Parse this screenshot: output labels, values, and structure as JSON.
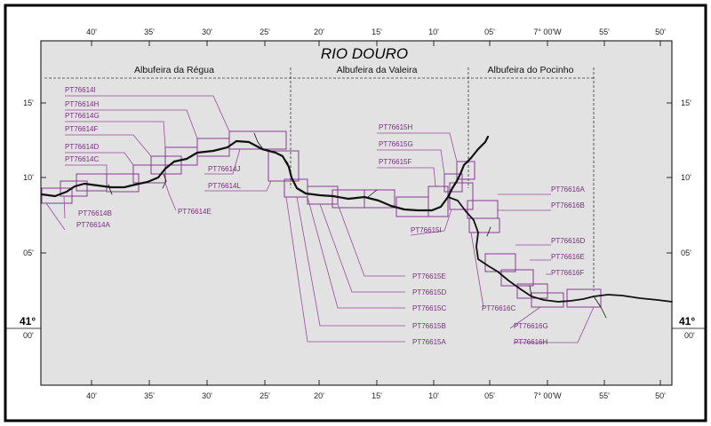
{
  "title": "RIO DOURO",
  "reaches": [
    "Albufeira da Régua",
    "Albufeira da Valeira",
    "Albufeira do Pocinho"
  ],
  "top_ticks": [
    "40'",
    "35'",
    "30'",
    "25'",
    "20'",
    "15'",
    "10'",
    "05'",
    "7° 00'W",
    "55'",
    "50'"
  ],
  "bottom_ticks": [
    "40'",
    "35'",
    "30'",
    "25'",
    "20'",
    "15'",
    "10'",
    "05'",
    "7° 00'W",
    "55'",
    "50'"
  ],
  "left_ticks": [
    "15'",
    "10'",
    "05'"
  ],
  "right_ticks": [
    "15'",
    "10'",
    "05'"
  ],
  "lat_label": {
    "deg": "41°",
    "min": "00'"
  },
  "sheets": [
    "PT76614I",
    "PT76614H",
    "PT76614G",
    "PT76614F",
    "PT76614D",
    "PT76614C",
    "PT76614B",
    "PT76614A",
    "PT76614J",
    "PT76614L",
    "PT76614E",
    "PT76615H",
    "PT76615G",
    "PT76615F",
    "PT76615I",
    "PT76615E",
    "PT76615D",
    "PT76615C",
    "PT76615B",
    "PT76615A",
    "PT76616A",
    "PT76616B",
    "PT76616D",
    "PT76616E",
    "PT76616F",
    "PT76616C",
    "PT76616G",
    "PT76616H"
  ],
  "colors": {
    "map_bg": "#e2e2e2",
    "sheet": "#7a2a82",
    "river": "#111111"
  }
}
